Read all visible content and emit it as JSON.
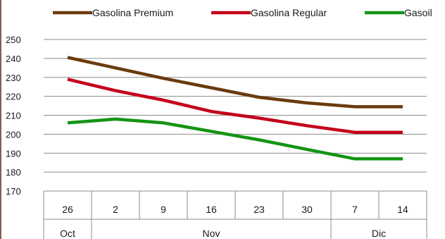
{
  "chart_data": {
    "type": "line",
    "title": "",
    "xlabel": "",
    "ylabel": "",
    "ylim": [
      170,
      250
    ],
    "yticks": [
      170,
      180,
      190,
      200,
      210,
      220,
      230,
      240,
      250
    ],
    "grid": true,
    "legend_position": "top",
    "categories": [
      "26",
      "2",
      "9",
      "16",
      "23",
      "30",
      "7",
      "14"
    ],
    "month_groups": [
      {
        "label": "Oct",
        "count": 1
      },
      {
        "label": "Nov",
        "count": 5
      },
      {
        "label": "Dic",
        "count": 2
      }
    ],
    "series": [
      {
        "name": "Gasolina Premium",
        "color": "#6b3a0d",
        "values": [
          240.5,
          235,
          229.5,
          224.5,
          219.5,
          216.5,
          214.5,
          214.5
        ]
      },
      {
        "name": "Gasolina Regular",
        "color": "#c4001a",
        "values": [
          229,
          223,
          218,
          212,
          208.5,
          204.5,
          201,
          201
        ]
      },
      {
        "name": "Gasoil",
        "color": "#149414",
        "values": [
          206,
          208,
          206,
          201.5,
          197,
          192,
          187,
          187
        ]
      }
    ]
  }
}
